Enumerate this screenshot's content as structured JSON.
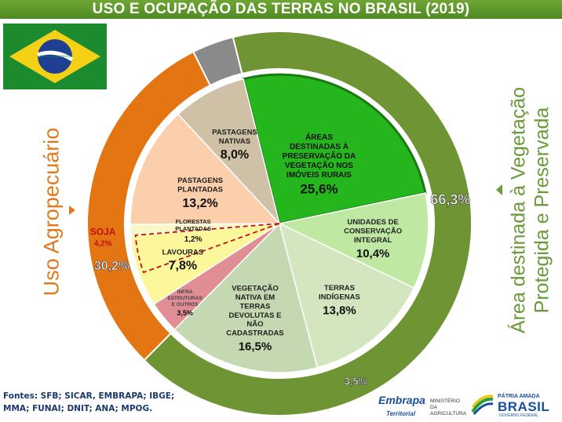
{
  "title": "USO E OCUPAÇÃO DAS TERRAS NO BRASIL (2019)",
  "flag_motto": "ORDEM E PROGRESSO",
  "side_labels": {
    "left": "Uso Agropecuário",
    "right_line1": "Área destinada à Vegetação",
    "right_line2": "Protegida e Preservada"
  },
  "sources": {
    "line1": "Fontes: SFB; SICAR, EMBRAPA; IBGE;",
    "line2": "MMA; FUNAI; DNIT; ANA; MPOG."
  },
  "logos": {
    "embrapa": "Embrapa",
    "embrapa_sub": "Territorial",
    "ministry": "MINISTÉRIO DA AGRICULTURA",
    "brasil_top": "PÁTRIA AMADA",
    "brasil_main": "BRASIL",
    "brasil_sub": "GOVERNO FEDERAL"
  },
  "colors": {
    "title_bar": "#5d9a2a",
    "outer_vegetation": "#6f9433",
    "outer_agro": "#e37512",
    "outer_infra": "#8a8a8a",
    "app": "#25b51d",
    "uc": "#bfe9a3",
    "ti": "#d3e6bf",
    "vn": "#c4d8b2",
    "florestas": "#f9f7c6",
    "lavouras": "#fcf79b",
    "infra": "#e08d95",
    "pastagens_plantadas": "#fbcfac",
    "pastagens_nativas": "#cfc1a5"
  },
  "chart_data": [
    {
      "type": "pie",
      "name": "outer ring",
      "slices": [
        {
          "label": "",
          "value": 66.3,
          "text": "66,3%"
        },
        {
          "label": "",
          "value": 30.2,
          "text": "30,2%"
        },
        {
          "label": "",
          "value": 3.5,
          "text": "3,5%"
        }
      ]
    },
    {
      "type": "pie",
      "name": "inner pie",
      "slices": [
        {
          "label": "ÁREAS DESTINADAS À PRESERVAÇÃO DA VEGETAÇÃO NOS IMÓVEIS RURAIS",
          "value": 25.6,
          "text": "25,6%"
        },
        {
          "label": "UNIDADES DE CONSERVAÇÃO INTEGRAL",
          "value": 10.4,
          "text": "10,4%"
        },
        {
          "label": "TERRAS INDÍGENAS",
          "value": 13.8,
          "text": "13,8%"
        },
        {
          "label": "VEGETAÇÃO NATIVA EM TERRAS DEVOLUTAS E NÃO CADASTRADAS",
          "value": 16.5,
          "text": "16,5%"
        },
        {
          "label": "INFRA ESTRUTURAS E OUTROS",
          "value": 3.5,
          "text": "3,5%"
        },
        {
          "label": "LAVOURAS",
          "value": 7.8,
          "text": "7,8%"
        },
        {
          "label": "FLORESTAS PLANTADAS",
          "value": 1.2,
          "text": "1,2%"
        },
        {
          "label": "PASTAGENS PLANTADAS",
          "value": 13.2,
          "text": "13,2%"
        },
        {
          "label": "PASTAGENS NATIVAS",
          "value": 8.0,
          "text": "8,0%"
        }
      ],
      "annotation": {
        "label": "SOJA",
        "value": 4.2,
        "text": "4,2%"
      }
    }
  ]
}
